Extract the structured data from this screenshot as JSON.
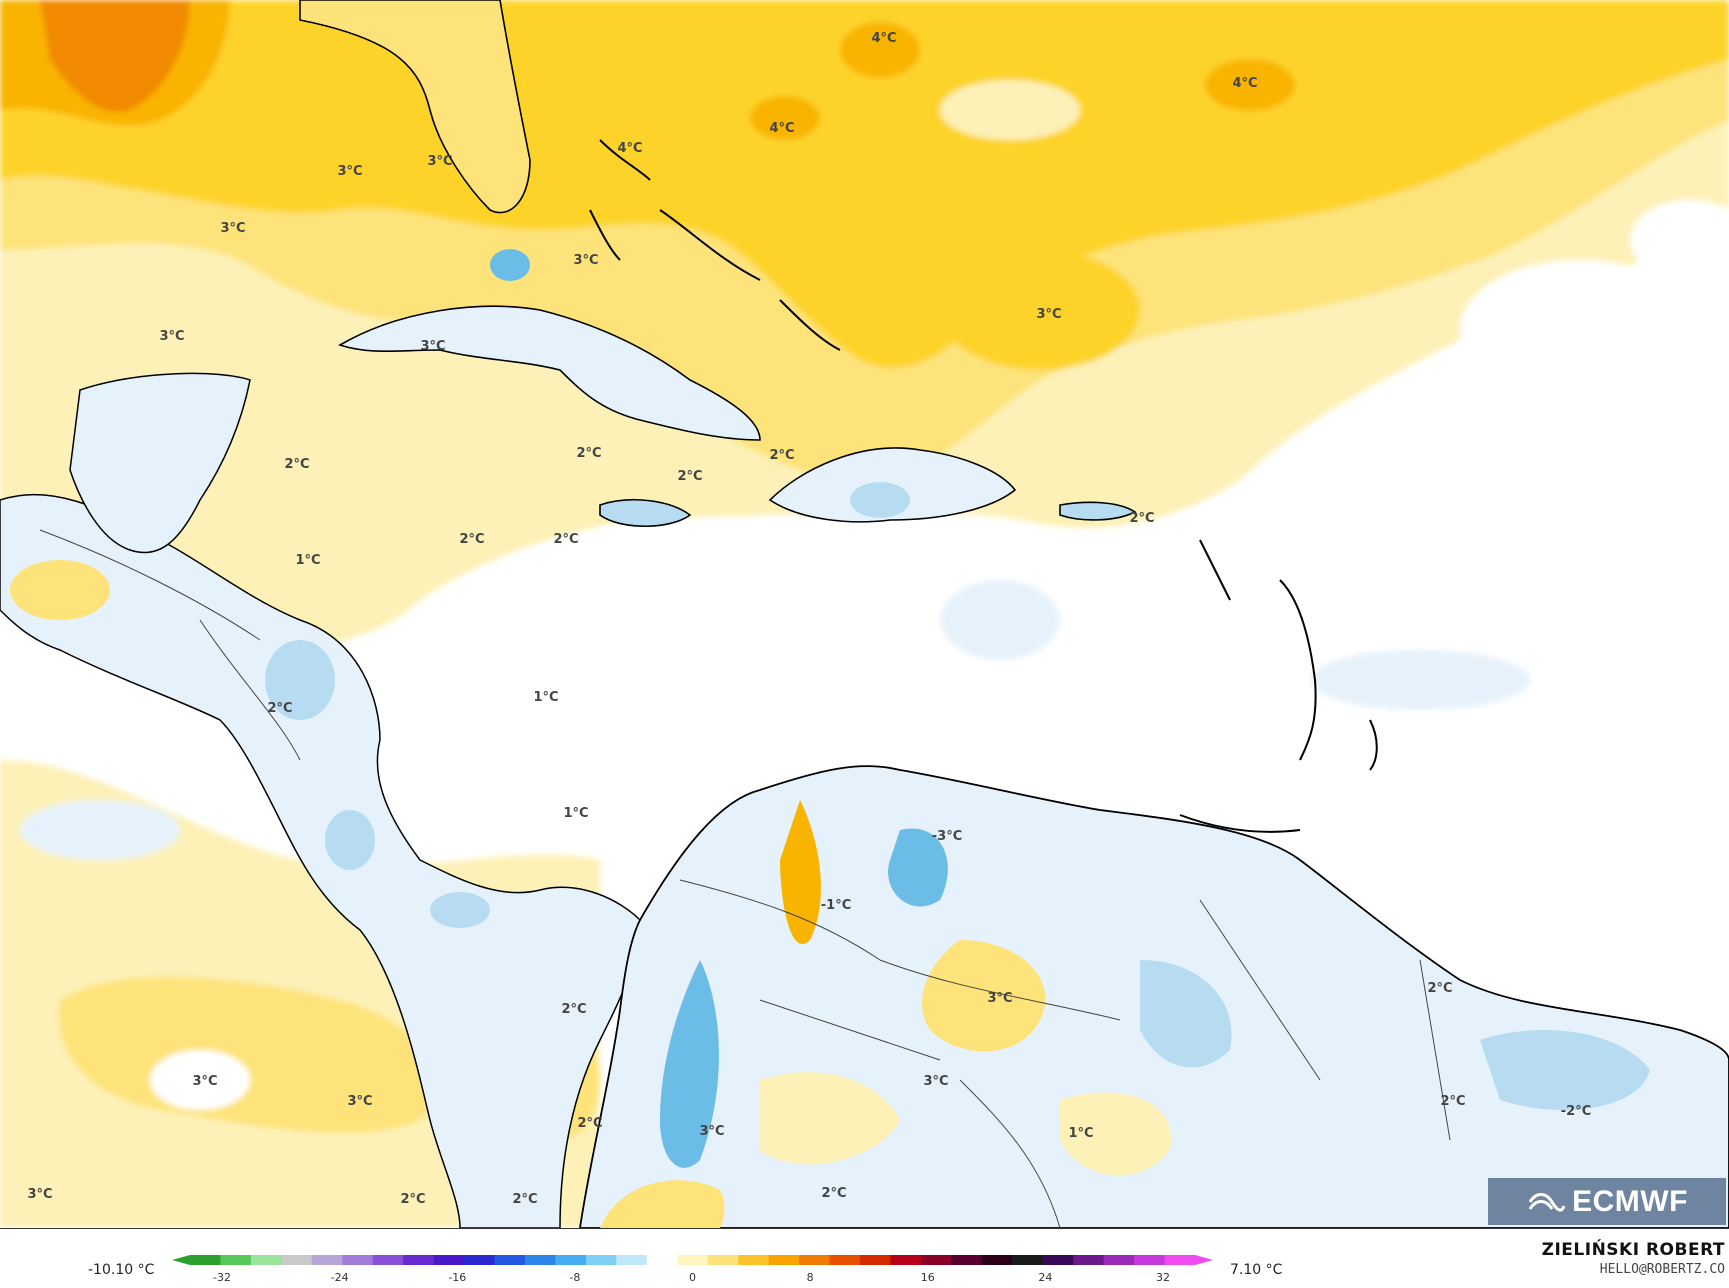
{
  "map": {
    "colors": {
      "ocean_neutral": "#ffffff",
      "warm_1": "#fdf1b8",
      "warm_2": "#fde37a",
      "warm_3": "#fdd32b",
      "warm_4": "#f9b400",
      "warm_5": "#f18a00",
      "cool_1": "#e6f2fb",
      "cool_2": "#b7dcf2",
      "cool_3": "#6bbde8",
      "coast": "#000000",
      "border": "#444444"
    },
    "isolines": [
      {
        "text": "4°C"
      },
      {
        "text": "4°C"
      },
      {
        "text": "4°C"
      },
      {
        "text": "4°C"
      },
      {
        "text": "3°C"
      },
      {
        "text": "3°C"
      },
      {
        "text": "3°C"
      },
      {
        "text": "3°C"
      },
      {
        "text": "3°C"
      },
      {
        "text": "3°C"
      },
      {
        "text": "3°C"
      },
      {
        "text": "2°C"
      },
      {
        "text": "2°C"
      },
      {
        "text": "2°C"
      },
      {
        "text": "2°C"
      },
      {
        "text": "2°C"
      },
      {
        "text": "2°C"
      },
      {
        "text": "2°C"
      },
      {
        "text": "1°C"
      },
      {
        "text": "2°C"
      },
      {
        "text": "1°C"
      },
      {
        "text": "1°C"
      },
      {
        "text": "-3°C"
      },
      {
        "text": "-1°C"
      },
      {
        "text": "3°C"
      },
      {
        "text": "2°C"
      },
      {
        "text": "2°C"
      },
      {
        "text": "3°C"
      },
      {
        "text": "3°C"
      },
      {
        "text": "2°C"
      },
      {
        "text": "3°C"
      },
      {
        "text": "1°C"
      },
      {
        "text": "-2°C"
      },
      {
        "text": "2°C"
      },
      {
        "text": "3°C"
      },
      {
        "text": "2°C"
      },
      {
        "text": "2°C"
      },
      {
        "text": "2°C"
      },
      {
        "text": "3°C"
      }
    ]
  },
  "legend": {
    "min_label": "-10.10 °C",
    "max_label": "7.10 °C",
    "ticks": [
      "-32",
      "-24",
      "-16",
      "-8",
      "0",
      "8",
      "16",
      "24",
      "32"
    ],
    "colors": [
      "#2ca02c",
      "#56c85a",
      "#9be39a",
      "#c9c9c9",
      "#b7a5d8",
      "#a27ad8",
      "#8a4fd8",
      "#6a2ad2",
      "#4a18c8",
      "#2a2ad0",
      "#2458e0",
      "#2f86ea",
      "#45aef2",
      "#7fd0f6",
      "#bfe8fb",
      "#ffffff",
      "#fff5c0",
      "#fde37a",
      "#fdc22b",
      "#f9a300",
      "#f27a00",
      "#e85000",
      "#d42a00",
      "#b80018",
      "#8a0026",
      "#5a0030",
      "#2a0018",
      "#1a1a1a",
      "#3a0a5a",
      "#6a1a8a",
      "#9a2aba",
      "#c83ae0",
      "#f04af0"
    ]
  },
  "branding": {
    "logo_text": "ECMWF",
    "author": "ZIELIŃSKI ROBERT",
    "email": "HELLO@ROBERTZ.CO"
  }
}
